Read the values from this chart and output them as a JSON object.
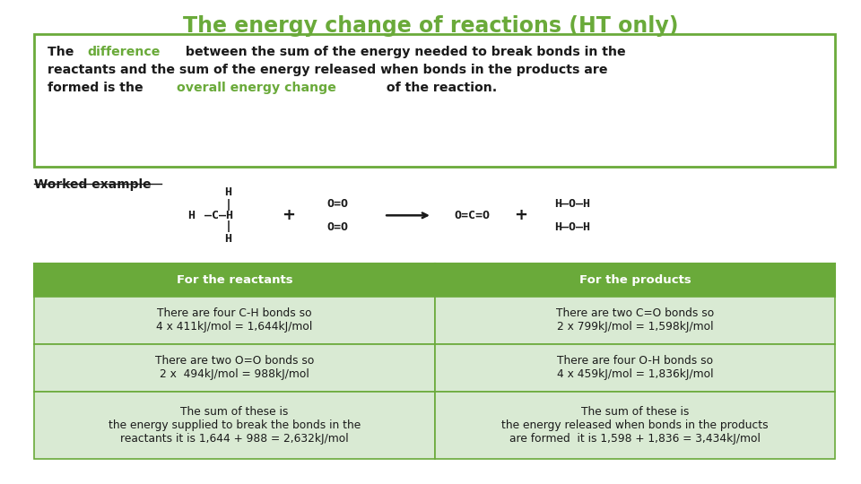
{
  "title": "The energy change of reactions (HT only)",
  "title_color": "#6aaa3a",
  "bg_color": "#ffffff",
  "box_border_color": "#6aaa3a",
  "box_highlight_color": "#6aaa3a",
  "worked_example_label": "Worked example",
  "table_header_bg": "#6aaa3a",
  "table_header_text_color": "#ffffff",
  "table_row_bg_light": "#d9ead3",
  "table_border_color": "#6aaa3a",
  "table_headers": [
    "For the reactants",
    "For the products"
  ],
  "table_rows": [
    [
      "There are four C-H bonds so\n4 x 411kJ/mol = 1,644kJ/mol",
      "There are two C=O bonds so\n2 x 799kJ/mol = 1,598kJ/mol"
    ],
    [
      "There are two O=O bonds so\n2 x  494kJ/mol = 988kJ/mol",
      "There are four O-H bonds so\n4 x 459kJ/mol = 1,836kJ/mol"
    ],
    [
      "The sum of these is\nthe energy supplied to break the bonds in the\nreactants it is 1,644 + 988 = 2,632kJ/mol",
      "The sum of these is\nthe energy released when bonds in the products\nare formed  it is 1,598 + 1,836 = 3,434kJ/mol"
    ]
  ]
}
